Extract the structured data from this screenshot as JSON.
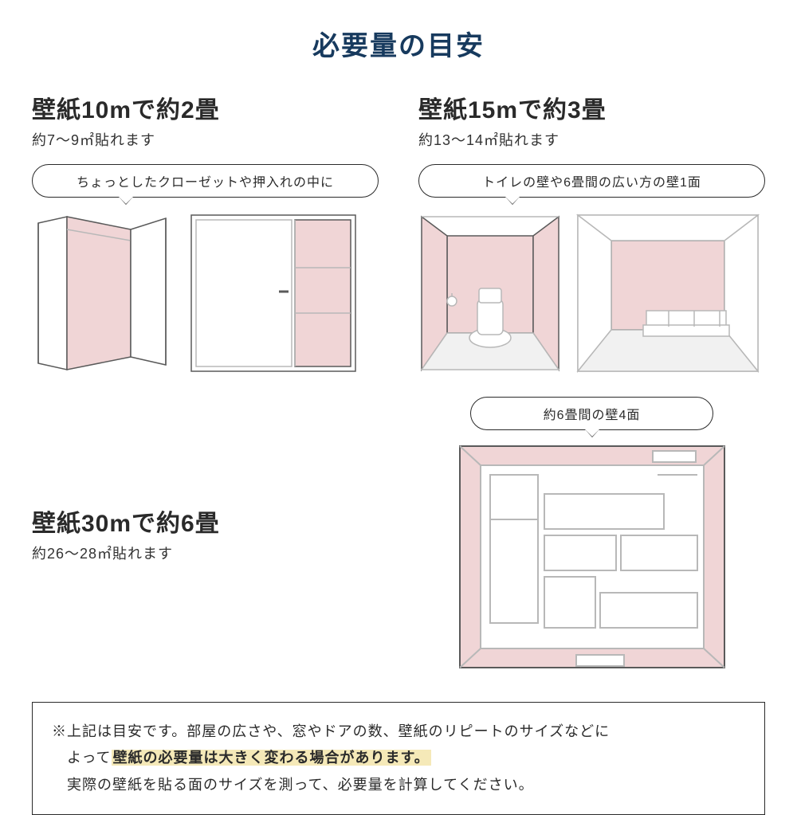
{
  "colors": {
    "title": "#173a5e",
    "heading": "#2a2a2a",
    "text": "#333333",
    "border": "#2a2a2a",
    "pink": "#f0d5d6",
    "pinkDark": "#e8c5c6",
    "lineLight": "#b8b8b8",
    "lineDark": "#5a5a5a",
    "highlight": "#f5e9b8",
    "floor": "#f1f1f1"
  },
  "title": "必要量の目安",
  "sections": {
    "s1": {
      "heading": "壁紙10mで約2畳",
      "sub": "約7〜9㎡貼れます",
      "bubble": "ちょっとしたクローゼットや押入れの中に"
    },
    "s2": {
      "heading": "壁紙15mで約3畳",
      "sub": "約13〜14㎡貼れます",
      "bubble": "トイレの壁や6畳間の広い方の壁1面"
    },
    "s3": {
      "heading": "壁紙30mで約6畳",
      "sub": "約26〜28㎡貼れます"
    },
    "s4": {
      "bubble": "約6畳間の壁4面"
    }
  },
  "note": {
    "line1_a": "※上記は目安です。部屋の広さや、窓やドアの数、壁紙のリピートのサイズなどに",
    "line2_a": "よって",
    "line2_highlight": "壁紙の必要量は大きく変わる場合があります。",
    "line3": "実際の壁紙を貼る面のサイズを測って、必要量を計算してください。"
  }
}
